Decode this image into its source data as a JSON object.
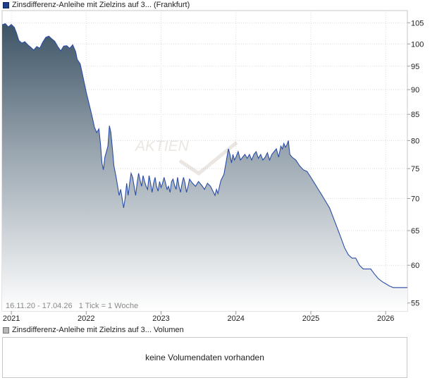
{
  "price_legend": {
    "label": "Zinsdifferenz-Anleihe mit Zielzins auf 3... (Frankfurt)",
    "color": "#1f3f8a"
  },
  "volume_legend": {
    "label": "Zinsdifferenz-Anleihe mit Zielzins auf 3... Volumen"
  },
  "info": {
    "range": "16.11.20 - 17.04.26",
    "tick": "1 Tick = 1 Woche"
  },
  "watermark": "AKTIEN",
  "volume_empty_text": "keine Volumendaten vorhanden",
  "chart_data": {
    "type": "area",
    "x_start": 2020.877,
    "x_end": 2026.29,
    "xlim": [
      2020.877,
      2026.29
    ],
    "ylim": [
      54,
      108
    ],
    "y_scale": "log",
    "yticks": [
      55,
      60,
      65,
      70,
      75,
      80,
      85,
      90,
      95,
      100,
      105
    ],
    "xticks": [
      {
        "value": 2021.0,
        "label": "2021"
      },
      {
        "value": 2022.0,
        "label": "2022"
      },
      {
        "value": 2023.0,
        "label": "2023"
      },
      {
        "value": 2024.0,
        "label": "2024"
      },
      {
        "value": 2025.0,
        "label": "2025"
      },
      {
        "value": 2026.0,
        "label": "2026"
      }
    ],
    "grid": true,
    "colors": {
      "line": "#2a4ea8",
      "fill_top": "#3d5466",
      "fill_bottom": "#ffffff"
    },
    "points": [
      [
        2020.877,
        104.5
      ],
      [
        2020.92,
        104.8
      ],
      [
        2020.96,
        104.0
      ],
      [
        2021.0,
        104.6
      ],
      [
        2021.04,
        103.9
      ],
      [
        2021.07,
        102.5
      ],
      [
        2021.1,
        100.8
      ],
      [
        2021.14,
        100.2
      ],
      [
        2021.18,
        100.5
      ],
      [
        2021.22,
        99.8
      ],
      [
        2021.26,
        99.2
      ],
      [
        2021.3,
        98.6
      ],
      [
        2021.34,
        99.4
      ],
      [
        2021.38,
        99.0
      ],
      [
        2021.42,
        100.4
      ],
      [
        2021.46,
        101.5
      ],
      [
        2021.5,
        101.8
      ],
      [
        2021.54,
        101.2
      ],
      [
        2021.58,
        100.6
      ],
      [
        2021.62,
        99.4
      ],
      [
        2021.66,
        98.4
      ],
      [
        2021.7,
        99.5
      ],
      [
        2021.74,
        99.6
      ],
      [
        2021.78,
        99.0
      ],
      [
        2021.82,
        99.8
      ],
      [
        2021.86,
        98.2
      ],
      [
        2021.88,
        96.5
      ],
      [
        2021.92,
        95.5
      ],
      [
        2021.96,
        92.5
      ],
      [
        2022.0,
        89.5
      ],
      [
        2022.04,
        87.0
      ],
      [
        2022.08,
        84.5
      ],
      [
        2022.11,
        82.5
      ],
      [
        2022.14,
        81.5
      ],
      [
        2022.17,
        82.2
      ],
      [
        2022.19,
        79.5
      ],
      [
        2022.21,
        76.0
      ],
      [
        2022.23,
        74.8
      ],
      [
        2022.25,
        77.0
      ],
      [
        2022.27,
        78.0
      ],
      [
        2022.29,
        79.0
      ],
      [
        2022.31,
        82.8
      ],
      [
        2022.33,
        81.5
      ],
      [
        2022.35,
        78.5
      ],
      [
        2022.37,
        75.5
      ],
      [
        2022.4,
        73.5
      ],
      [
        2022.42,
        72.0
      ],
      [
        2022.44,
        70.5
      ],
      [
        2022.46,
        71.5
      ],
      [
        2022.48,
        70.0
      ],
      [
        2022.5,
        68.5
      ],
      [
        2022.52,
        70.0
      ],
      [
        2022.54,
        72.5
      ],
      [
        2022.56,
        70.5
      ],
      [
        2022.58,
        72.5
      ],
      [
        2022.6,
        74.2
      ],
      [
        2022.62,
        73.5
      ],
      [
        2022.64,
        72.0
      ],
      [
        2022.66,
        70.5
      ],
      [
        2022.68,
        72.5
      ],
      [
        2022.7,
        74.2
      ],
      [
        2022.72,
        73.0
      ],
      [
        2022.74,
        72.0
      ],
      [
        2022.76,
        73.8
      ],
      [
        2022.78,
        72.8
      ],
      [
        2022.8,
        72.0
      ],
      [
        2022.82,
        71.5
      ],
      [
        2022.84,
        73.8
      ],
      [
        2022.86,
        72.5
      ],
      [
        2022.88,
        71.0
      ],
      [
        2022.9,
        72.5
      ],
      [
        2022.92,
        73.5
      ],
      [
        2022.94,
        72.0
      ],
      [
        2022.96,
        71.2
      ],
      [
        2022.98,
        72.8
      ],
      [
        2023.0,
        71.8
      ],
      [
        2023.02,
        72.5
      ],
      [
        2023.04,
        73.5
      ],
      [
        2023.06,
        72.5
      ],
      [
        2023.08,
        71.5
      ],
      [
        2023.1,
        72.0
      ],
      [
        2023.12,
        71.0
      ],
      [
        2023.14,
        72.8
      ],
      [
        2023.16,
        73.2
      ],
      [
        2023.18,
        72.2
      ],
      [
        2023.2,
        71.5
      ],
      [
        2023.22,
        73.5
      ],
      [
        2023.24,
        72.0
      ],
      [
        2023.26,
        71.0
      ],
      [
        2023.28,
        72.5
      ],
      [
        2023.3,
        73.5
      ],
      [
        2023.32,
        72.5
      ],
      [
        2023.34,
        71.0
      ],
      [
        2023.36,
        72.0
      ],
      [
        2023.38,
        73.2
      ],
      [
        2023.42,
        72.5
      ],
      [
        2023.46,
        72.0
      ],
      [
        2023.5,
        72.8
      ],
      [
        2023.54,
        72.2
      ],
      [
        2023.58,
        71.5
      ],
      [
        2023.62,
        72.5
      ],
      [
        2023.66,
        72.0
      ],
      [
        2023.7,
        71.0
      ],
      [
        2023.72,
        70.5
      ],
      [
        2023.74,
        71.5
      ],
      [
        2023.76,
        70.8
      ],
      [
        2023.78,
        72.0
      ],
      [
        2023.8,
        73.0
      ],
      [
        2023.82,
        73.5
      ],
      [
        2023.84,
        74.0
      ],
      [
        2023.86,
        75.5
      ],
      [
        2023.88,
        77.0
      ],
      [
        2023.9,
        78.5
      ],
      [
        2023.92,
        77.5
      ],
      [
        2023.94,
        76.0
      ],
      [
        2023.96,
        77.5
      ],
      [
        2023.98,
        76.5
      ],
      [
        2024.0,
        77.0
      ],
      [
        2024.03,
        78.0
      ],
      [
        2024.06,
        76.5
      ],
      [
        2024.09,
        77.0
      ],
      [
        2024.12,
        77.5
      ],
      [
        2024.15,
        76.8
      ],
      [
        2024.18,
        77.5
      ],
      [
        2024.21,
        76.5
      ],
      [
        2024.24,
        77.5
      ],
      [
        2024.27,
        78.0
      ],
      [
        2024.3,
        76.8
      ],
      [
        2024.33,
        77.5
      ],
      [
        2024.36,
        76.5
      ],
      [
        2024.39,
        77.0
      ],
      [
        2024.42,
        77.8
      ],
      [
        2024.45,
        76.5
      ],
      [
        2024.48,
        77.5
      ],
      [
        2024.51,
        78.0
      ],
      [
        2024.54,
        78.5
      ],
      [
        2024.57,
        77.0
      ],
      [
        2024.6,
        79.0
      ],
      [
        2024.62,
        78.5
      ],
      [
        2024.64,
        79.5
      ],
      [
        2024.66,
        78.8
      ],
      [
        2024.68,
        79.2
      ],
      [
        2024.7,
        80.0
      ],
      [
        2024.72,
        77.5
      ],
      [
        2024.75,
        77.0
      ],
      [
        2024.8,
        76.5
      ],
      [
        2024.85,
        75.5
      ],
      [
        2024.9,
        74.8
      ],
      [
        2024.95,
        74.5
      ],
      [
        2025.0,
        73.5
      ],
      [
        2025.05,
        72.5
      ],
      [
        2025.1,
        71.5
      ],
      [
        2025.15,
        70.5
      ],
      [
        2025.2,
        69.5
      ],
      [
        2025.25,
        68.5
      ],
      [
        2025.3,
        67.0
      ],
      [
        2025.35,
        65.5
      ],
      [
        2025.4,
        64.0
      ],
      [
        2025.45,
        62.5
      ],
      [
        2025.5,
        61.5
      ],
      [
        2025.55,
        61.0
      ],
      [
        2025.6,
        61.0
      ],
      [
        2025.65,
        60.0
      ],
      [
        2025.7,
        59.5
      ],
      [
        2025.75,
        59.5
      ],
      [
        2025.8,
        59.5
      ],
      [
        2025.85,
        58.8
      ],
      [
        2025.9,
        58.2
      ],
      [
        2025.95,
        57.8
      ],
      [
        2026.0,
        57.5
      ],
      [
        2026.05,
        57.2
      ],
      [
        2026.1,
        57.0
      ],
      [
        2026.15,
        57.0
      ],
      [
        2026.2,
        57.0
      ],
      [
        2026.29,
        57.0
      ]
    ]
  }
}
